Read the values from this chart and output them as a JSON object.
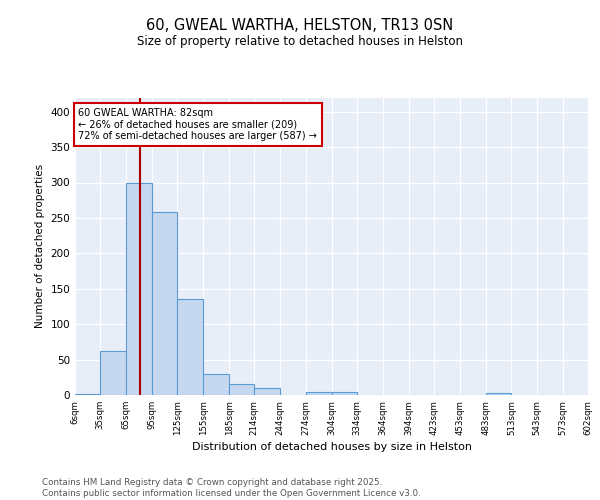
{
  "title": "60, GWEAL WARTHA, HELSTON, TR13 0SN",
  "subtitle": "Size of property relative to detached houses in Helston",
  "xlabel": "Distribution of detached houses by size in Helston",
  "ylabel": "Number of detached properties",
  "bins": [
    6,
    35,
    65,
    95,
    125,
    155,
    185,
    214,
    244,
    274,
    304,
    334,
    364,
    394,
    423,
    453,
    483,
    513,
    543,
    573,
    602
  ],
  "counts": [
    2,
    62,
    300,
    258,
    135,
    30,
    15,
    10,
    0,
    4,
    4,
    0,
    0,
    0,
    0,
    0,
    3,
    0,
    0,
    0
  ],
  "bar_color": "#c5d8f0",
  "bar_edge_color": "#5b9bd5",
  "property_size": 82,
  "red_line_color": "#aa0000",
  "annotation_text": "60 GWEAL WARTHA: 82sqm\n← 26% of detached houses are smaller (209)\n72% of semi-detached houses are larger (587) →",
  "annotation_box_color": "#cc0000",
  "annotation_text_color": "#000000",
  "ylim": [
    0,
    420
  ],
  "yticks": [
    0,
    50,
    100,
    150,
    200,
    250,
    300,
    350,
    400
  ],
  "background_color": "#e8eef8",
  "grid_color": "#ffffff",
  "footer_text": "Contains HM Land Registry data © Crown copyright and database right 2025.\nContains public sector information licensed under the Open Government Licence v3.0.",
  "tick_labels": [
    "6sqm",
    "35sqm",
    "65sqm",
    "95sqm",
    "125sqm",
    "155sqm",
    "185sqm",
    "214sqm",
    "244sqm",
    "274sqm",
    "304sqm",
    "334sqm",
    "364sqm",
    "394sqm",
    "423sqm",
    "453sqm",
    "483sqm",
    "513sqm",
    "543sqm",
    "573sqm",
    "602sqm"
  ]
}
